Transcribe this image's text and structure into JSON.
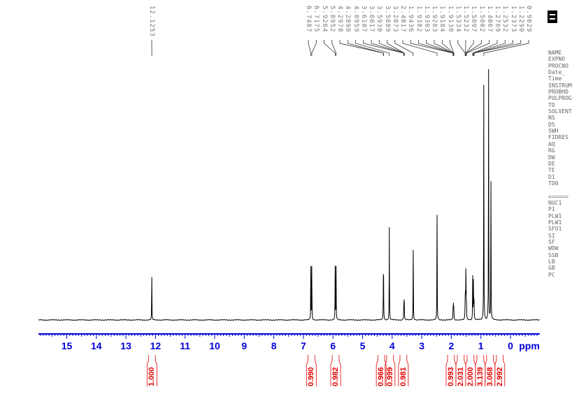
{
  "chart_data": {
    "type": "line",
    "title": "",
    "xlabel": "ppm",
    "ylabel": "",
    "xlim": [
      15.95,
      -0.97
    ],
    "x_ticks": [
      "15",
      "14",
      "13",
      "12",
      "11",
      "10",
      "9",
      "8",
      "7",
      "6",
      "5",
      "4",
      "3",
      "2",
      "1",
      "0"
    ],
    "grid": false,
    "colors": {
      "spectrum": "#000000",
      "axis": "#0000d8",
      "integral": "#e00000",
      "peak_label": "#777777"
    },
    "peaks": [
      {
        "ppm": 12.1253,
        "intensity": 0.17
      },
      {
        "ppm": 6.7487,
        "intensity": 0.21
      },
      {
        "ppm": 6.7175,
        "intensity": 0.21
      },
      {
        "ppm": 5.9264,
        "intensity": 0.21
      },
      {
        "ppm": 5.8952,
        "intensity": 0.21
      },
      {
        "ppm": 4.2978,
        "intensity": 0.15
      },
      {
        "ppm": 4.289,
        "intensity": 0.14
      },
      {
        "ppm": 4.0959,
        "intensity": 0.37
      },
      {
        "ppm": 3.6107,
        "intensity": 0.03
      },
      {
        "ppm": 3.6017,
        "intensity": 0.05
      },
      {
        "ppm": 3.593,
        "intensity": 0.05
      },
      {
        "ppm": 3.5889,
        "intensity": 0.03
      },
      {
        "ppm": 3.2873,
        "intensity": 0.28
      },
      {
        "ppm": 2.4817,
        "intensity": 0.42
      },
      {
        "ppm": 1.9436,
        "intensity": 0.02
      },
      {
        "ppm": 1.9382,
        "intensity": 0.03
      },
      {
        "ppm": 1.9303,
        "intensity": 0.03
      },
      {
        "ppm": 1.9263,
        "intensity": 0.03
      },
      {
        "ppm": 1.9184,
        "intensity": 0.03
      },
      {
        "ppm": 1.913,
        "intensity": 0.02
      },
      {
        "ppm": 1.5334,
        "intensity": 0.06
      },
      {
        "ppm": 1.5232,
        "intensity": 0.08
      },
      {
        "ppm": 1.5097,
        "intensity": 0.17
      },
      {
        "ppm": 1.5002,
        "intensity": 0.1
      },
      {
        "ppm": 1.4867,
        "intensity": 0.05
      },
      {
        "ppm": 1.2769,
        "intensity": 0.17
      },
      {
        "ppm": 1.2532,
        "intensity": 0.15
      },
      {
        "ppm": 1.2373,
        "intensity": 0.06
      },
      {
        "ppm": 1.229,
        "intensity": 0.05
      },
      {
        "ppm": 0.9029,
        "intensity": 0.94
      },
      {
        "ppm": 0.74,
        "intensity": 1.0
      },
      {
        "ppm": 0.66,
        "intensity": 0.55
      }
    ],
    "peak_labels": [
      "12.1253",
      "6.7487",
      "6.7175",
      "5.9264",
      "5.8952",
      "4.2978",
      "4.2890",
      "4.0959",
      "3.6107",
      "3.6017",
      "3.5930",
      "3.5889",
      "3.2873",
      "2.4817",
      "1.9436",
      "1.9382",
      "1.9303",
      "1.9263",
      "1.9184",
      "1.9130",
      "1.5334",
      "1.5232",
      "1.5097",
      "1.5002",
      "1.4867",
      "1.2769",
      "1.2532",
      "1.2373",
      "1.2290",
      "0.9029"
    ],
    "integrals": [
      {
        "ppm": 12.12,
        "value": "1.000"
      },
      {
        "ppm": 6.73,
        "value": "0.990"
      },
      {
        "ppm": 5.91,
        "value": "0.982"
      },
      {
        "ppm": 4.37,
        "value": "0.966"
      },
      {
        "ppm": 4.07,
        "value": "0.999"
      },
      {
        "ppm": 3.62,
        "value": "0.981"
      },
      {
        "ppm": 2.01,
        "value": "0.993"
      },
      {
        "ppm": 1.68,
        "value": "2.031"
      },
      {
        "ppm": 1.35,
        "value": "2.000"
      },
      {
        "ppm": 1.02,
        "value": "3.139"
      },
      {
        "ppm": 0.69,
        "value": "3.068"
      },
      {
        "ppm": 0.36,
        "value": "2.992"
      }
    ]
  },
  "parameters": [
    "NAME",
    "EXPNO",
    "PROCNO",
    "Date_",
    "Time",
    "INSTRUM",
    "PROBHD",
    "PULPROG",
    "TD",
    "SOLVENT",
    "NS",
    "DS",
    "SWH",
    "FIDRES",
    "AQ",
    "RG",
    "DW",
    "DE",
    "TE",
    "D1",
    "TD0",
    "",
    "======",
    "NUC1",
    "P1",
    "PLW1",
    "PLW1",
    "SFO1",
    "SI",
    "SF",
    "WDW",
    "SSB",
    "LB",
    "GB",
    "PC"
  ]
}
